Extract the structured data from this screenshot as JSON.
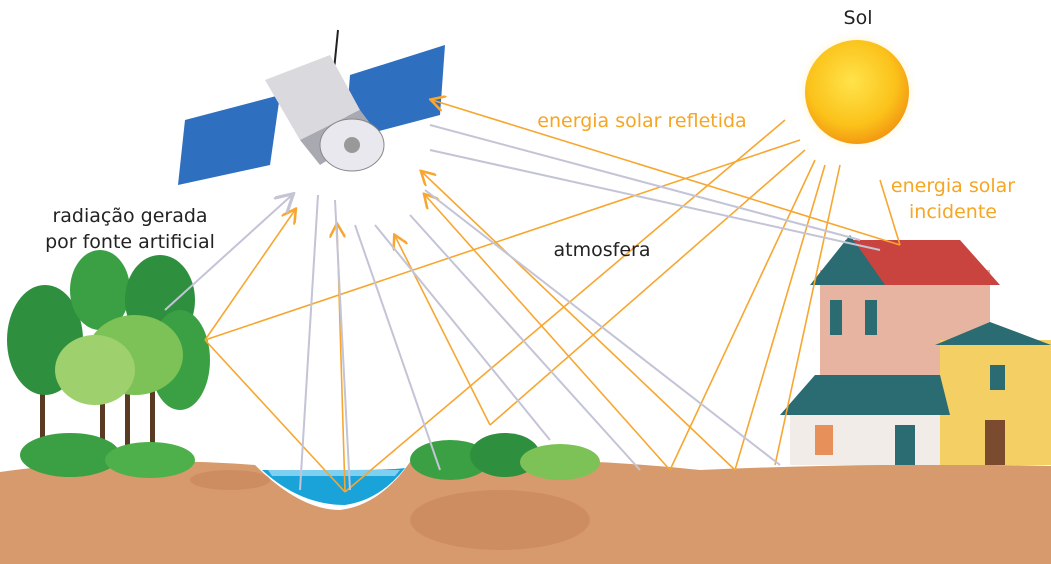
{
  "labels": {
    "sun": "Sol",
    "reflected": "energia solar refletida",
    "incident": [
      "energia solar",
      "incidente"
    ],
    "artificial": [
      "radiação gerada",
      "por fonte artificial"
    ],
    "atmosphere": "atmosfera"
  }
}
